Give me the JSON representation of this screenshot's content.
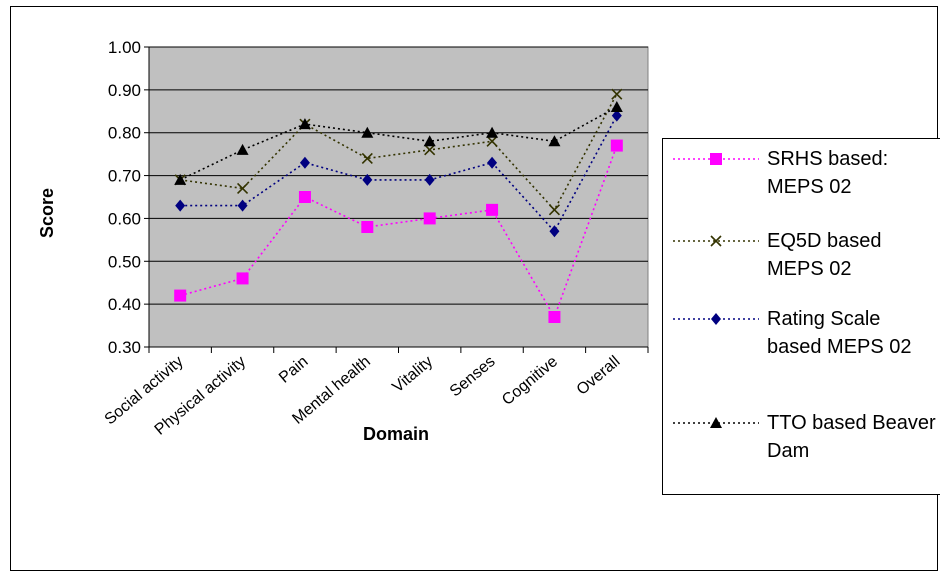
{
  "chart_data": {
    "type": "line",
    "title": "",
    "xlabel": "Domain",
    "ylabel": "Score",
    "ylim": [
      0.3,
      1.0
    ],
    "yticks": [
      "0.30",
      "0.40",
      "0.50",
      "0.60",
      "0.70",
      "0.80",
      "0.90",
      "1.00"
    ],
    "categories": [
      "Social activity",
      "Physical activity",
      "Pain",
      "Mental health",
      "Vitality",
      "Senses",
      "Cognitive",
      "Overall"
    ],
    "grid": true,
    "legend_position": "right",
    "series": [
      {
        "name": "SRHS based: MEPS 02",
        "marker": "square",
        "color": "#ff00ff",
        "values": [
          0.42,
          0.46,
          0.65,
          0.58,
          0.6,
          0.62,
          0.37,
          0.77
        ]
      },
      {
        "name": "EQ5D based MEPS 02",
        "marker": "x",
        "color": "#333300",
        "values": [
          0.69,
          0.67,
          0.82,
          0.74,
          0.76,
          0.78,
          0.62,
          0.89
        ]
      },
      {
        "name": "Rating Scale based MEPS 02",
        "marker": "diamond",
        "color": "#000080",
        "values": [
          0.63,
          0.63,
          0.73,
          0.69,
          0.69,
          0.73,
          0.57,
          0.84
        ]
      },
      {
        "name": "TTO based Beaver Dam",
        "marker": "triangle",
        "color": "#000000",
        "values": [
          0.69,
          0.76,
          0.82,
          0.8,
          0.78,
          0.8,
          0.78,
          0.86
        ]
      }
    ],
    "plot_background": "#c0c0c0"
  }
}
